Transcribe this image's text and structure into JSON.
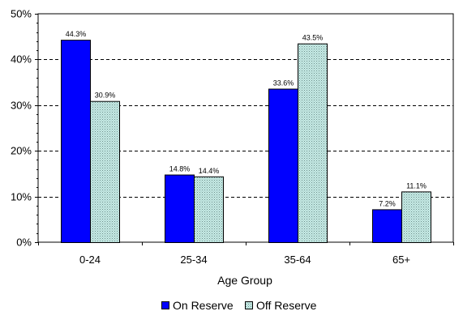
{
  "chart_data": {
    "type": "bar",
    "categories": [
      "0-24",
      "25-34",
      "35-64",
      "65+"
    ],
    "series": [
      {
        "name": "On Reserve",
        "values": [
          44.3,
          14.8,
          33.6,
          7.2
        ],
        "labels": [
          "44.3%",
          "14.8%",
          "33.6%",
          "7.2%"
        ],
        "color": "#0000ff",
        "pattern": "solid"
      },
      {
        "name": "Off Reserve",
        "values": [
          30.9,
          14.4,
          43.5,
          11.1
        ],
        "labels": [
          "30.9%",
          "14.4%",
          "43.5%",
          "11.1%"
        ],
        "color": "#c6ebe6",
        "pattern": "dotted"
      }
    ],
    "title": "",
    "xlabel": "Age Group",
    "ylabel": "",
    "ylim": [
      0,
      50
    ],
    "yticks": [
      0,
      10,
      20,
      30,
      40,
      50
    ],
    "ytick_labels": [
      "0%",
      "10%",
      "20%",
      "30%",
      "40%",
      "50%"
    ],
    "grid": "horizontal dashed",
    "legend_position": "bottom"
  }
}
